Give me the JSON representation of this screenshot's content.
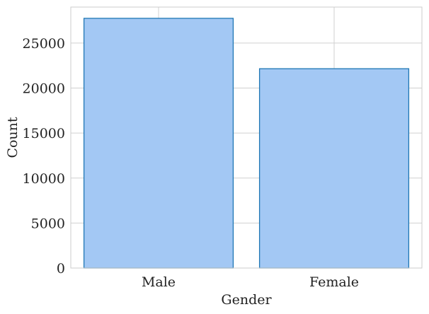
{
  "chart_data": {
    "type": "bar",
    "categories": [
      "Male",
      "Female"
    ],
    "values": [
      27750,
      22150
    ],
    "title": "",
    "xlabel": "Gender",
    "ylabel": "Count",
    "ylim": [
      0,
      29000
    ],
    "yticks": [
      0,
      5000,
      10000,
      15000,
      20000,
      25000
    ],
    "grid": true,
    "legend": "none",
    "colors": {
      "bar_fill": "#a3c8f4",
      "bar_edge": "#1f77b4",
      "grid": "#d0d0d0",
      "frame": "#cccccc",
      "text": "#222222"
    }
  }
}
